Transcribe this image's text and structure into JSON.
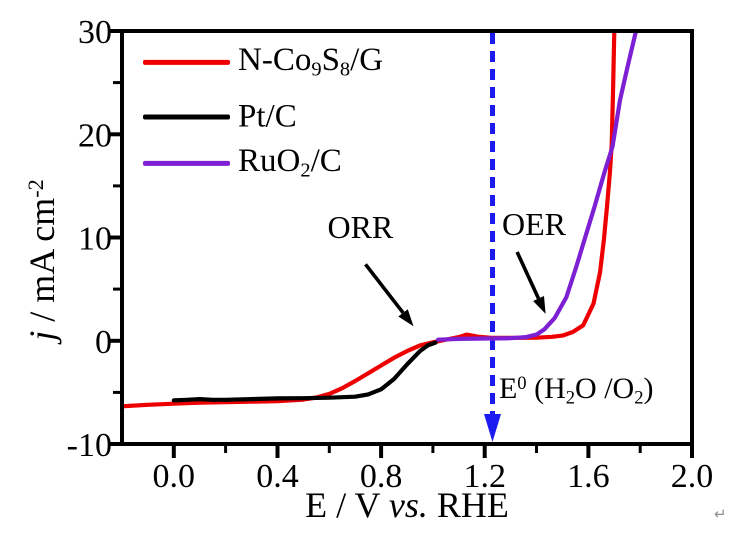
{
  "figure": {
    "background": "#ffffff",
    "axis_color": "#000000"
  },
  "artifacts": {
    "return_mark": "↵"
  },
  "chart_data": {
    "type": "line",
    "title": "",
    "xlabel": "E / V vs. RHE",
    "ylabel": "j / mA cm-2",
    "xlabel_segments": [
      {
        "t": "E / V "
      },
      {
        "t": "vs.",
        "italic": true
      },
      {
        "t": " RHE"
      }
    ],
    "ylabel_segments": [
      {
        "t": "j",
        "italic": true
      },
      {
        "t": " / mA cm"
      },
      {
        "t": "-2",
        "sup": true
      }
    ],
    "xlim": [
      -0.2,
      2.0
    ],
    "ylim": [
      -10,
      30
    ],
    "grid": false,
    "legend_position": "top-left",
    "x_major_ticks": [
      0.0,
      0.4,
      0.8,
      1.2,
      1.6,
      2.0
    ],
    "x_major_tick_labels": [
      "0.0",
      "0.4",
      "0.8",
      "1.2",
      "1.6",
      "2.0"
    ],
    "x_minor_ticks": [
      0.2,
      0.6,
      1.0,
      1.4,
      1.8
    ],
    "y_major_ticks": [
      -10,
      0,
      10,
      20,
      30
    ],
    "y_major_tick_labels": [
      "-10",
      "0",
      "10",
      "20",
      "30"
    ],
    "y_minor_ticks": [
      -5,
      5,
      15,
      25
    ],
    "series": [
      {
        "name": "N-Co9S8/G",
        "label_segments": [
          {
            "t": "N-Co"
          },
          {
            "t": "9",
            "sub": true
          },
          {
            "t": "S"
          },
          {
            "t": "8",
            "sub": true
          },
          {
            "t": "/G"
          }
        ],
        "color": "#ee0000",
        "points": [
          [
            -0.2,
            -6.35
          ],
          [
            -0.1,
            -6.2
          ],
          [
            0.0,
            -6.1
          ],
          [
            0.1,
            -6.0
          ],
          [
            0.2,
            -5.95
          ],
          [
            0.3,
            -5.9
          ],
          [
            0.4,
            -5.85
          ],
          [
            0.5,
            -5.7
          ],
          [
            0.55,
            -5.5
          ],
          [
            0.6,
            -5.15
          ],
          [
            0.65,
            -4.6
          ],
          [
            0.7,
            -3.9
          ],
          [
            0.75,
            -3.15
          ],
          [
            0.8,
            -2.4
          ],
          [
            0.85,
            -1.65
          ],
          [
            0.9,
            -1.0
          ],
          [
            0.95,
            -0.45
          ],
          [
            1.0,
            -0.15
          ],
          [
            1.05,
            0.1
          ],
          [
            1.1,
            0.35
          ],
          [
            1.13,
            0.6
          ],
          [
            1.17,
            0.4
          ],
          [
            1.22,
            0.3
          ],
          [
            1.3,
            0.28
          ],
          [
            1.4,
            0.3
          ],
          [
            1.46,
            0.38
          ],
          [
            1.5,
            0.5
          ],
          [
            1.54,
            0.85
          ],
          [
            1.58,
            1.5
          ],
          [
            1.62,
            3.6
          ],
          [
            1.645,
            6.6
          ],
          [
            1.66,
            9.8
          ],
          [
            1.672,
            13.0
          ],
          [
            1.683,
            16.3
          ],
          [
            1.69,
            19.0
          ],
          [
            1.695,
            24.0
          ],
          [
            1.7,
            30.0
          ]
        ]
      },
      {
        "name": "Pt/C",
        "label_segments": [
          {
            "t": "Pt/C"
          }
        ],
        "color": "#000000",
        "points": [
          [
            0.0,
            -5.78
          ],
          [
            0.05,
            -5.72
          ],
          [
            0.1,
            -5.65
          ],
          [
            0.15,
            -5.72
          ],
          [
            0.2,
            -5.72
          ],
          [
            0.3,
            -5.65
          ],
          [
            0.4,
            -5.58
          ],
          [
            0.5,
            -5.56
          ],
          [
            0.6,
            -5.52
          ],
          [
            0.7,
            -5.42
          ],
          [
            0.75,
            -5.2
          ],
          [
            0.8,
            -4.7
          ],
          [
            0.85,
            -3.7
          ],
          [
            0.9,
            -2.3
          ],
          [
            0.95,
            -1.0
          ],
          [
            0.98,
            -0.45
          ],
          [
            1.01,
            -0.18
          ]
        ]
      },
      {
        "name": "RuO2/C",
        "label_segments": [
          {
            "t": "RuO"
          },
          {
            "t": "2",
            "sub": true
          },
          {
            "t": "/C"
          }
        ],
        "color": "#7d1fd3",
        "points": [
          [
            1.02,
            0.1
          ],
          [
            1.1,
            0.18
          ],
          [
            1.2,
            0.22
          ],
          [
            1.3,
            0.25
          ],
          [
            1.36,
            0.35
          ],
          [
            1.4,
            0.6
          ],
          [
            1.43,
            1.1
          ],
          [
            1.47,
            2.2
          ],
          [
            1.515,
            4.2
          ],
          [
            1.554,
            7.2
          ],
          [
            1.585,
            9.8
          ],
          [
            1.624,
            13.0
          ],
          [
            1.662,
            16.3
          ],
          [
            1.693,
            18.8
          ],
          [
            1.722,
            23.3
          ],
          [
            1.752,
            26.6
          ],
          [
            1.784,
            30.0
          ]
        ]
      }
    ],
    "annotations": {
      "orr": {
        "text": "ORR",
        "text_pos": [
          0.72,
          11.0
        ],
        "arrow_from": [
          0.74,
          7.4
        ],
        "arrow_to": [
          0.925,
          1.4
        ]
      },
      "oer": {
        "text": "OER",
        "text_pos": [
          1.39,
          11.3
        ],
        "arrow_from": [
          1.325,
          8.6
        ],
        "arrow_to": [
          1.435,
          2.6
        ]
      },
      "e0": {
        "label": "E0 (H2O /O2)",
        "label_segments": [
          {
            "t": "E"
          },
          {
            "t": "0",
            "sup": true
          },
          {
            "t": " (H"
          },
          {
            "t": "2",
            "sub": true
          },
          {
            "t": "O /O"
          },
          {
            "t": "2",
            "sub": true
          },
          {
            "t": ")"
          }
        ],
        "line_x": 1.23,
        "color": "#1b1bf0",
        "label_pos": [
          1.255,
          -4.9
        ]
      }
    }
  }
}
